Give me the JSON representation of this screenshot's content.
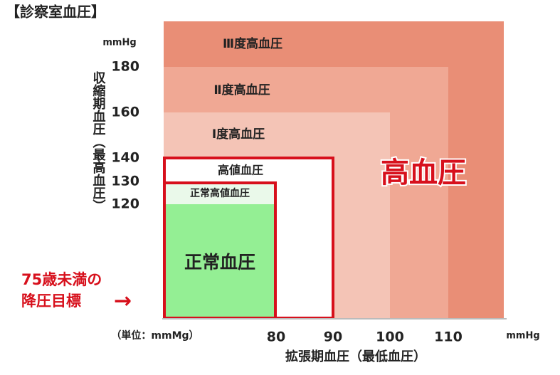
{
  "title": "【診察室血圧】",
  "y_axis": {
    "unit": "mmHg",
    "label": "収縮期血圧（最高血圧）",
    "ticks": [
      "180",
      "160",
      "140",
      "130",
      "120"
    ]
  },
  "x_axis": {
    "unit_note": "（単位：mmMg）",
    "ticks": [
      "80",
      "90",
      "100",
      "110"
    ],
    "unit": "mmHg",
    "label": "拡張期血圧（最低血圧）"
  },
  "regions": {
    "grade3": "Ⅲ度高血圧",
    "grade2": "Ⅱ度高血圧",
    "grade1": "Ⅰ度高血圧",
    "high": "高値血圧",
    "high_normal": "正常高値血圧",
    "normal": "正常血圧"
  },
  "hypertension_label": "高血圧",
  "target": {
    "lines": [
      "75歳未満の",
      "降圧目標"
    ],
    "arrow": "→"
  }
}
